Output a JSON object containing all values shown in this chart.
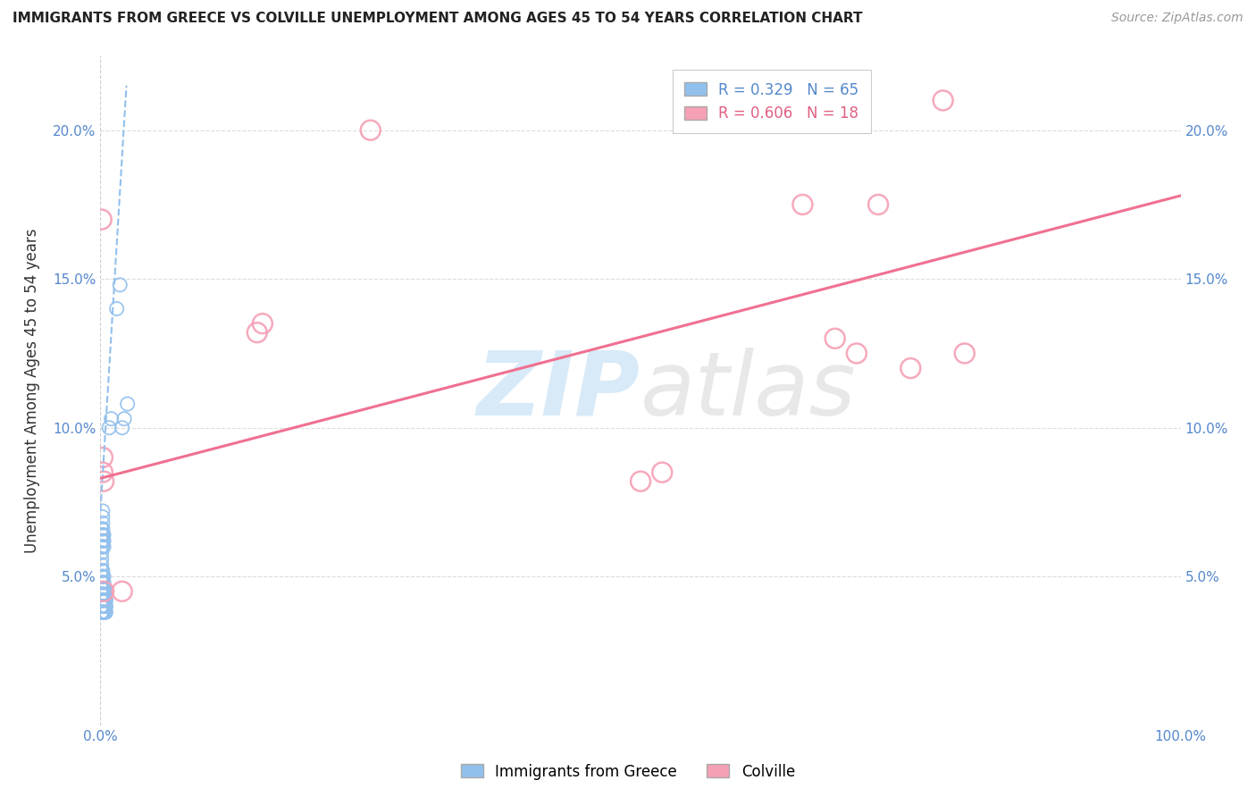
{
  "title": "IMMIGRANTS FROM GREECE VS COLVILLE UNEMPLOYMENT AMONG AGES 45 TO 54 YEARS CORRELATION CHART",
  "source": "Source: ZipAtlas.com",
  "ylabel": "Unemployment Among Ages 45 to 54 years",
  "x_min": 0.0,
  "x_max": 1.0,
  "y_min": 0.0,
  "y_max": 0.225,
  "y_ticks": [
    0.0,
    0.05,
    0.1,
    0.15,
    0.2
  ],
  "y_tick_labels": [
    "",
    "5.0%",
    "10.0%",
    "15.0%",
    "20.0%"
  ],
  "x_ticks": [
    0.0,
    0.1,
    0.2,
    0.3,
    0.4,
    0.5,
    0.6,
    0.7,
    0.8,
    0.9,
    1.0
  ],
  "x_tick_labels": [
    "0.0%",
    "",
    "",
    "",
    "",
    "",
    "",
    "",
    "",
    "",
    "100.0%"
  ],
  "legend_r1": "R = 0.329",
  "legend_n1": "N = 65",
  "legend_r2": "R = 0.606",
  "legend_n2": "N = 18",
  "color_blue": "#92C0ED",
  "color_pink": "#F5A0B5",
  "color_blue_line": "#92C0ED",
  "color_pink_line": "#F07090",
  "watermark_color": "#D8EAF8",
  "blue_scatter_x": [
    0.001,
    0.001,
    0.001,
    0.001,
    0.001,
    0.001,
    0.001,
    0.001,
    0.001,
    0.001,
    0.001,
    0.001,
    0.001,
    0.001,
    0.001,
    0.001,
    0.001,
    0.001,
    0.001,
    0.001,
    0.002,
    0.002,
    0.002,
    0.002,
    0.002,
    0.002,
    0.002,
    0.002,
    0.002,
    0.002,
    0.002,
    0.002,
    0.002,
    0.002,
    0.002,
    0.002,
    0.002,
    0.002,
    0.002,
    0.002,
    0.003,
    0.003,
    0.003,
    0.003,
    0.003,
    0.003,
    0.003,
    0.003,
    0.003,
    0.003,
    0.004,
    0.004,
    0.004,
    0.004,
    0.004,
    0.005,
    0.005,
    0.005,
    0.008,
    0.01,
    0.015,
    0.018,
    0.02,
    0.022,
    0.025
  ],
  "blue_scatter_y": [
    0.038,
    0.04,
    0.042,
    0.044,
    0.046,
    0.048,
    0.05,
    0.052,
    0.054,
    0.056,
    0.058,
    0.06,
    0.062,
    0.064,
    0.066,
    0.038,
    0.04,
    0.042,
    0.044,
    0.046,
    0.038,
    0.04,
    0.042,
    0.044,
    0.046,
    0.048,
    0.05,
    0.052,
    0.06,
    0.062,
    0.064,
    0.066,
    0.068,
    0.07,
    0.072,
    0.038,
    0.04,
    0.042,
    0.044,
    0.046,
    0.038,
    0.04,
    0.042,
    0.044,
    0.046,
    0.048,
    0.05,
    0.06,
    0.062,
    0.064,
    0.038,
    0.04,
    0.042,
    0.044,
    0.046,
    0.038,
    0.04,
    0.042,
    0.1,
    0.103,
    0.14,
    0.148,
    0.1,
    0.103,
    0.108
  ],
  "pink_scatter_x": [
    0.001,
    0.002,
    0.002,
    0.003,
    0.003,
    0.02,
    0.15,
    0.145,
    0.25,
    0.5,
    0.52,
    0.65,
    0.68,
    0.7,
    0.72,
    0.75,
    0.8,
    0.78
  ],
  "pink_scatter_y": [
    0.17,
    0.085,
    0.09,
    0.045,
    0.082,
    0.045,
    0.135,
    0.132,
    0.2,
    0.082,
    0.085,
    0.175,
    0.13,
    0.125,
    0.175,
    0.12,
    0.125,
    0.21
  ],
  "blue_line_x": [
    0.0,
    0.024
  ],
  "blue_line_y": [
    0.072,
    0.215
  ],
  "pink_line_x": [
    0.0,
    1.0
  ],
  "pink_line_y": [
    0.083,
    0.178
  ]
}
